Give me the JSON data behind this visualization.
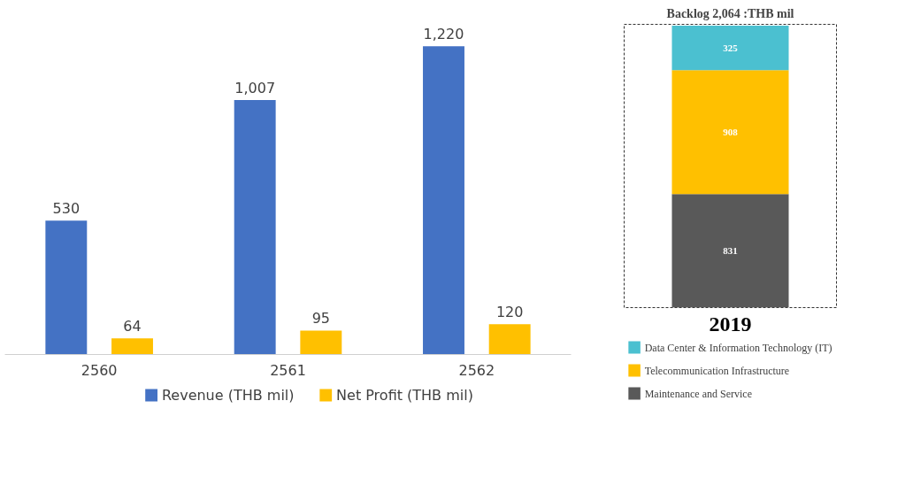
{
  "chart_data": [
    {
      "type": "bar",
      "categories": [
        "2560",
        "2561",
        "2562"
      ],
      "series": [
        {
          "name": "Revenue (THB mil)",
          "color": "#4472c4",
          "values": [
            530,
            1007,
            1220
          ],
          "value_labels": [
            "530",
            "1,007",
            "1,220"
          ]
        },
        {
          "name": "Net Profit (THB mil)",
          "color": "#ffc000",
          "values": [
            64,
            95,
            120
          ]
        }
      ],
      "data_labels": true,
      "legend": "bottom",
      "grid": false,
      "tick_labels": "x"
    },
    {
      "type": "bar",
      "title": "Backlog 2,064 :THB mil",
      "categories": [
        "2019"
      ],
      "stacked": true,
      "series": [
        {
          "name": "Maintenance and Service",
          "color": "#595959",
          "values": [
            831
          ]
        },
        {
          "name": "Telecommunication Infrastructure",
          "color": "#ffc000",
          "values": [
            908
          ]
        },
        {
          "name": "Data Center & Information Technology (IT)",
          "color": "#4bc0d0",
          "values": [
            325
          ]
        }
      ],
      "data_labels": true,
      "legend": "bottom",
      "grid": false,
      "tick_labels": "x"
    }
  ]
}
